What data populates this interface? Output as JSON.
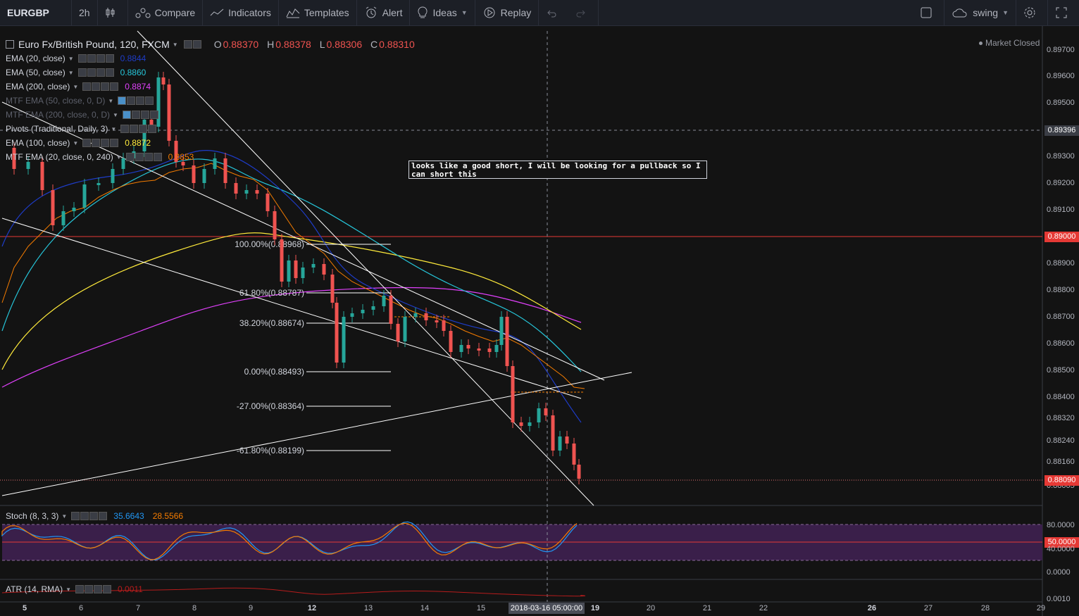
{
  "toolbar": {
    "symbol": "EURGBP",
    "interval": "2h",
    "compare": "Compare",
    "indicators": "Indicators",
    "templates": "Templates",
    "alert": "Alert",
    "ideas": "Ideas",
    "replay": "Replay",
    "layout_name": "swing"
  },
  "chart": {
    "title": "Euro Fx/British Pound, 120, FXCM",
    "ohlc": {
      "o": "0.88370",
      "h": "0.88378",
      "l": "0.88306",
      "c": "0.88310"
    },
    "market_status": "Market Closed",
    "annotation": "looks like a good short, I will be looking for a pullback so I can short this",
    "crosshair_price": "0.89396",
    "crosshair_time": "2018-03-16 05:00:00",
    "horizontal_level": "0.89000",
    "last_price": "0.88090"
  },
  "indicators": [
    {
      "name": "EMA (20, close)",
      "value": "0.8844",
      "color": "#1e3cc8"
    },
    {
      "name": "EMA (50, close)",
      "value": "0.8860",
      "color": "#26c6da"
    },
    {
      "name": "EMA (200, close)",
      "value": "0.8874",
      "color": "#e040fb"
    },
    {
      "name": "MTF EMA (50, close, 0, D)",
      "value": "",
      "color": "#4a90c8"
    },
    {
      "name": "MTF EMA (200, close, 0, D)",
      "value": "",
      "color": "#4a90c8"
    },
    {
      "name": "Pivots (Traditional, Daily, 3)",
      "value": "",
      "color": "#d1d4dc"
    },
    {
      "name": "EMA (100, close)",
      "value": "0.8872",
      "color": "#ffeb3b"
    },
    {
      "name": "MTF EMA (20, close, 0, 240)",
      "value": "0.8853",
      "color": "#f57c00"
    }
  ],
  "fib_levels": [
    {
      "label": "100.00%(0.88968)"
    },
    {
      "label": "61.80%(0.88787)"
    },
    {
      "label": "38.20%(0.88674)"
    },
    {
      "label": "0.00%(0.88493)"
    },
    {
      "label": "-27.00%(0.88364)"
    },
    {
      "label": "-61.80%(0.88199)"
    }
  ],
  "price_axis": [
    "0.89700",
    "0.89600",
    "0.89500",
    "0.89300",
    "0.89200",
    "0.89100",
    "0.88900",
    "0.88800",
    "0.88700",
    "0.88600",
    "0.88500",
    "0.88400",
    "0.88320",
    "0.88240",
    "0.88160",
    "0.88005"
  ],
  "stoch": {
    "name": "Stoch (8, 3, 3)",
    "k": "35.6643",
    "d": "28.5566",
    "axis": [
      "80.0000",
      "50.0000",
      "40.0000",
      "0.0000"
    ]
  },
  "atr": {
    "name": "ATR (14, RMA)",
    "value": "0.0011",
    "axis": [
      "0.0010"
    ]
  },
  "time_axis": [
    {
      "label": "5",
      "bold": true
    },
    {
      "label": "6",
      "bold": false
    },
    {
      "label": "7",
      "bold": false
    },
    {
      "label": "8",
      "bold": false
    },
    {
      "label": "9",
      "bold": false
    },
    {
      "label": "12",
      "bold": true
    },
    {
      "label": "13",
      "bold": false
    },
    {
      "label": "14",
      "bold": false
    },
    {
      "label": "15",
      "bold": false
    },
    {
      "label": "19",
      "bold": true
    },
    {
      "label": "20",
      "bold": false
    },
    {
      "label": "21",
      "bold": false
    },
    {
      "label": "22",
      "bold": false
    },
    {
      "label": "26",
      "bold": true
    },
    {
      "label": "27",
      "bold": false
    },
    {
      "label": "28",
      "bold": false
    },
    {
      "label": "29",
      "bold": false
    }
  ]
}
